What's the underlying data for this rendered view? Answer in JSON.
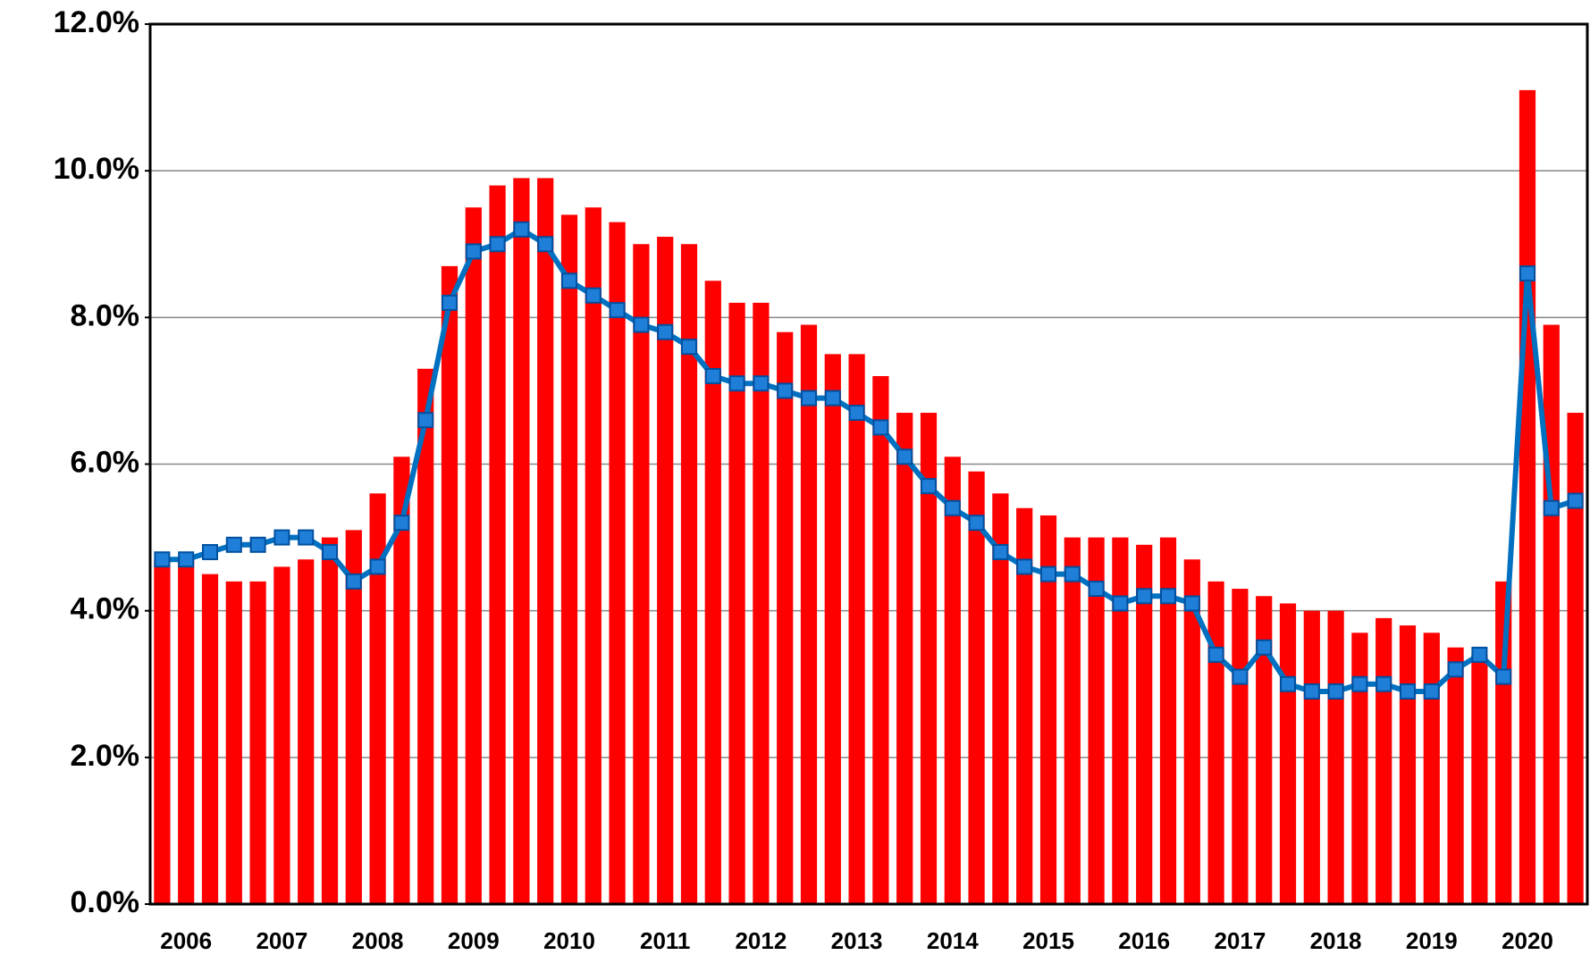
{
  "chart_data": {
    "type": "bar",
    "categories": [
      null,
      "2006",
      null,
      null,
      null,
      "2007",
      null,
      null,
      null,
      "2008",
      null,
      null,
      null,
      "2009",
      null,
      null,
      null,
      "2010",
      null,
      null,
      null,
      "2011",
      null,
      null,
      null,
      "2012",
      null,
      null,
      null,
      "2013",
      null,
      null,
      null,
      "2014",
      null,
      null,
      null,
      "2015",
      null,
      null,
      null,
      "2016",
      null,
      null,
      null,
      "2017",
      null,
      null,
      null,
      "2018",
      null,
      null,
      null,
      "2019",
      null,
      null,
      null,
      "2020",
      null,
      null
    ],
    "series": [
      {
        "type": "bar",
        "color": "#ff0000",
        "values": [
          4.7,
          4.7,
          4.5,
          4.4,
          4.4,
          4.6,
          4.7,
          5.0,
          5.1,
          5.6,
          6.1,
          7.3,
          8.7,
          9.5,
          9.8,
          9.9,
          9.9,
          9.4,
          9.5,
          9.3,
          9.0,
          9.1,
          9.0,
          8.5,
          8.2,
          8.2,
          7.8,
          7.9,
          7.5,
          7.5,
          7.2,
          6.7,
          6.7,
          6.1,
          5.9,
          5.6,
          5.4,
          5.3,
          5.0,
          5.0,
          5.0,
          4.9,
          5.0,
          4.7,
          4.4,
          4.3,
          4.2,
          4.1,
          4.0,
          4.0,
          3.7,
          3.9,
          3.8,
          3.7,
          3.5,
          3.4,
          4.4,
          11.1,
          7.9,
          6.7
        ]
      },
      {
        "type": "line",
        "color": "#0070c0",
        "values": [
          4.7,
          4.7,
          4.8,
          4.9,
          4.9,
          5.0,
          5.0,
          4.8,
          4.4,
          4.6,
          5.2,
          6.6,
          8.2,
          8.9,
          9.0,
          9.2,
          9.0,
          8.5,
          8.3,
          8.1,
          7.9,
          7.8,
          7.6,
          7.2,
          7.1,
          7.1,
          7.0,
          6.9,
          6.9,
          6.7,
          6.5,
          6.1,
          5.7,
          5.4,
          5.2,
          4.8,
          4.6,
          4.5,
          4.5,
          4.3,
          4.1,
          4.2,
          4.2,
          4.1,
          3.4,
          3.1,
          3.5,
          3.0,
          2.9,
          2.9,
          3.0,
          3.0,
          2.9,
          2.9,
          3.2,
          3.4,
          3.1,
          8.6,
          5.4,
          5.5
        ]
      }
    ],
    "ylim": [
      0,
      12
    ],
    "yticks": [
      {
        "value": 0,
        "label": "0.0%"
      },
      {
        "value": 2,
        "label": "2.0%"
      },
      {
        "value": 4,
        "label": "4.0%"
      },
      {
        "value": 6,
        "label": "6.0%"
      },
      {
        "value": 8,
        "label": "8.0%"
      },
      {
        "value": 10,
        "label": "10.0%"
      },
      {
        "value": 12,
        "label": "12.0%"
      }
    ],
    "grid": true
  }
}
